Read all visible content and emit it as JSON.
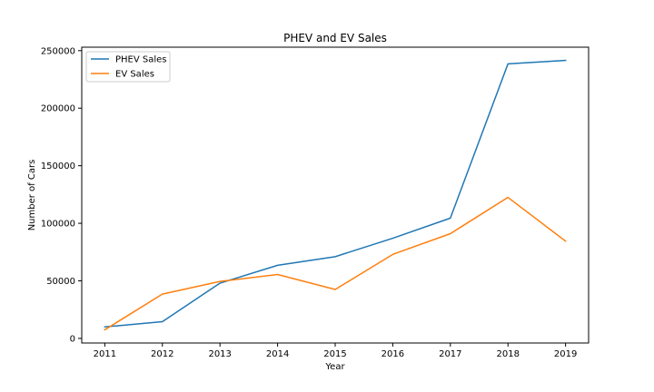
{
  "chart_data": {
    "type": "line",
    "title": "PHEV and EV Sales",
    "xlabel": "Year",
    "ylabel": "Number of Cars",
    "x": [
      2011,
      2012,
      2013,
      2014,
      2015,
      2016,
      2017,
      2018,
      2019
    ],
    "x_ticks": [
      "2011",
      "2012",
      "2013",
      "2014",
      "2015",
      "2016",
      "2017",
      "2018",
      "2019"
    ],
    "y_ticks": [
      0,
      50000,
      100000,
      150000,
      200000,
      250000
    ],
    "y_tick_labels": [
      "0",
      "50000",
      "100000",
      "150000",
      "200000",
      "250000"
    ],
    "xlim": [
      2010.6,
      2019.4
    ],
    "ylim": [
      -4000,
      253000
    ],
    "grid": false,
    "legend_position": "top-left",
    "series": [
      {
        "name": "PHEV Sales",
        "color": "#1f77b4",
        "values": [
          10000,
          14500,
          48000,
          63500,
          71000,
          87000,
          104500,
          238500,
          241500
        ]
      },
      {
        "name": "EV Sales",
        "color": "#ff7f0e",
        "values": [
          7500,
          38500,
          49500,
          55500,
          42500,
          73000,
          91000,
          122500,
          84500
        ]
      }
    ]
  }
}
